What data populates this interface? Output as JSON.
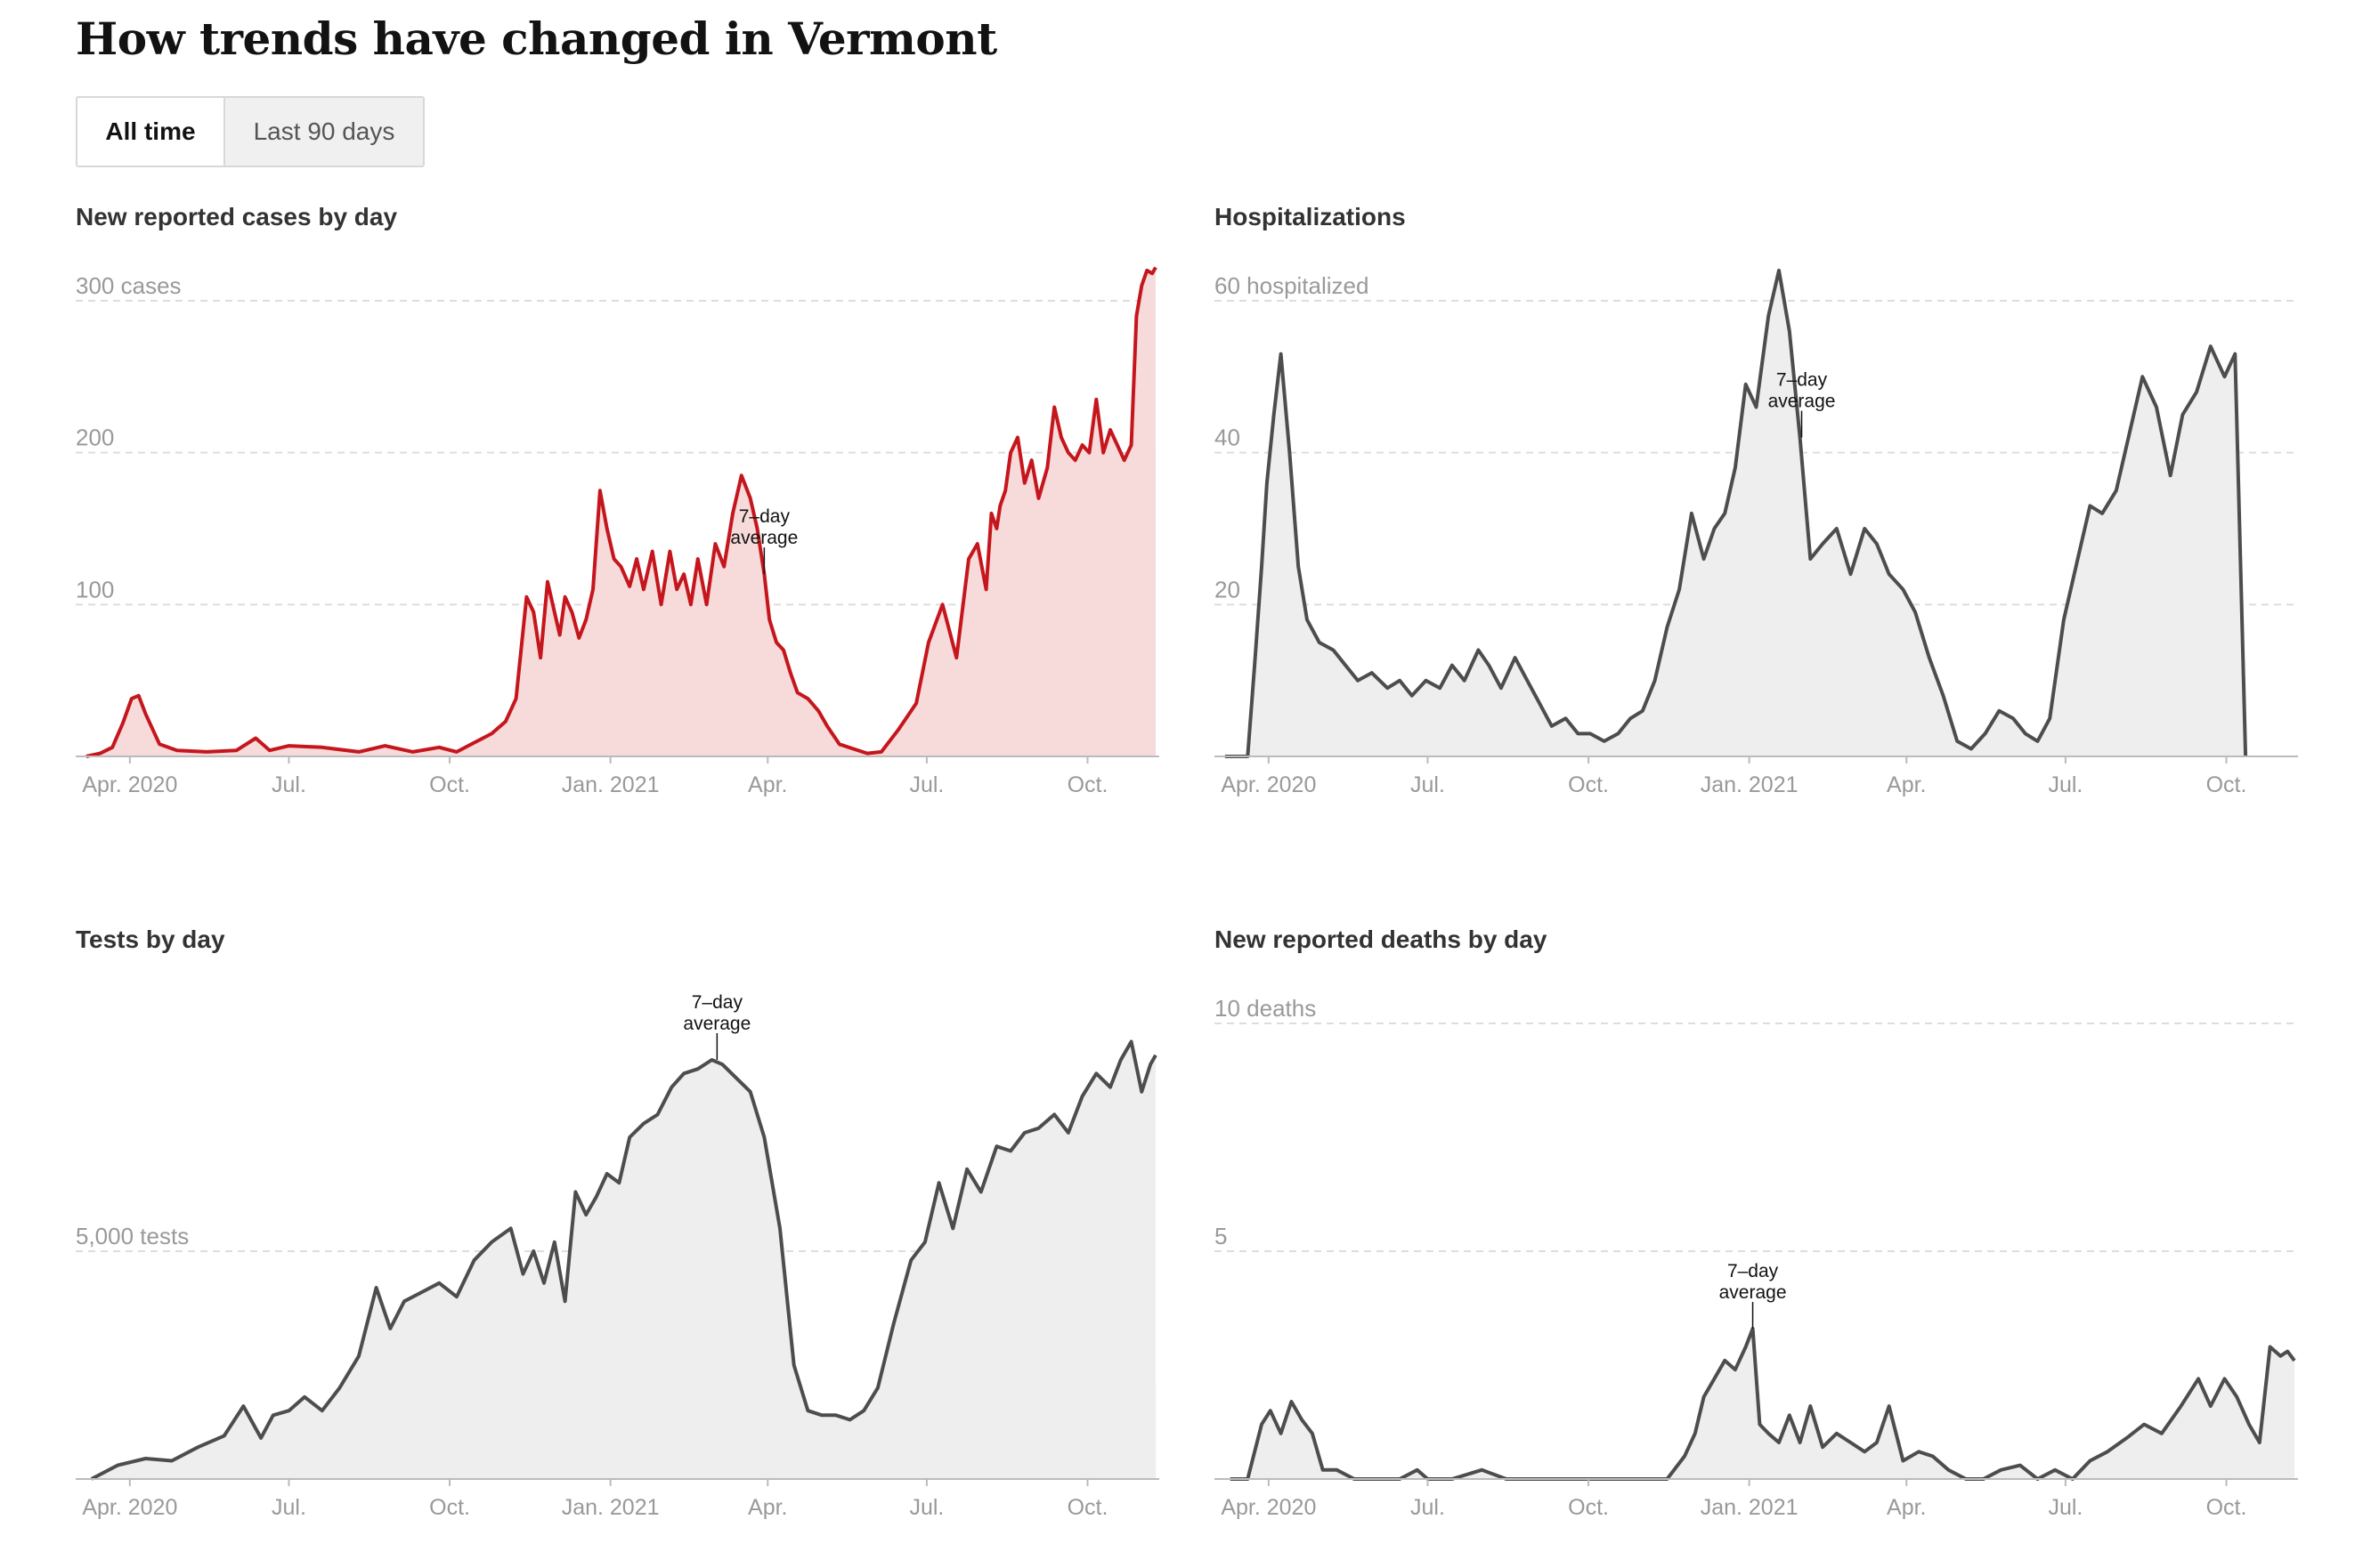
{
  "page": {
    "title": "How trends have changed in Vermont"
  },
  "toggle": {
    "options": [
      "All time",
      "Last 90 days"
    ],
    "selected": "All time"
  },
  "colors": {
    "cases_line": "#c5161d",
    "cases_fill": "#f7dada",
    "other_line": "#4d4d4d",
    "other_fill": "#eeeeee",
    "grid": "#dddddd",
    "axis_text": "#999999"
  },
  "annotation": {
    "line1": "7–day",
    "line2": "average"
  },
  "chart_data": [
    {
      "id": "cases",
      "type": "area",
      "title": "New reported cases by day",
      "x_range": [
        "2020-03-01",
        "2021-11-10"
      ],
      "ylim": [
        0,
        300
      ],
      "yticks": [
        100,
        200,
        300
      ],
      "ytick_labels": [
        "100",
        "200",
        "300 cases"
      ],
      "xticks": [
        "2020-04-01",
        "2020-07-01",
        "2020-10-01",
        "2021-01-01",
        "2021-04-01",
        "2021-07-01",
        "2021-10-01"
      ],
      "xtick_labels": [
        "Apr. 2020",
        "Jul.",
        "Oct.",
        "Jan. 2021",
        "Apr.",
        "Jul.",
        "Oct."
      ],
      "annotation_date": "2021-03-30",
      "series": [
        {
          "x": [
            "2020-03-07",
            "2020-03-15",
            "2020-03-22",
            "2020-03-28",
            "2020-04-02",
            "2020-04-06",
            "2020-04-10",
            "2020-04-18",
            "2020-04-28",
            "2020-05-15",
            "2020-06-01",
            "2020-06-12",
            "2020-06-20",
            "2020-07-01",
            "2020-07-20",
            "2020-08-10",
            "2020-08-25",
            "2020-09-10",
            "2020-09-25",
            "2020-10-05",
            "2020-10-15",
            "2020-10-25",
            "2020-11-02",
            "2020-11-08",
            "2020-11-14",
            "2020-11-18",
            "2020-11-22",
            "2020-11-26",
            "2020-11-30",
            "2020-12-03",
            "2020-12-06",
            "2020-12-10",
            "2020-12-14",
            "2020-12-18",
            "2020-12-22",
            "2020-12-26",
            "2020-12-30",
            "2021-01-03",
            "2021-01-07",
            "2021-01-12",
            "2021-01-16",
            "2021-01-20",
            "2021-01-25",
            "2021-01-30",
            "2021-02-04",
            "2021-02-08",
            "2021-02-12",
            "2021-02-16",
            "2021-02-20",
            "2021-02-25",
            "2021-03-02",
            "2021-03-07",
            "2021-03-12",
            "2021-03-17",
            "2021-03-22",
            "2021-03-26",
            "2021-03-30",
            "2021-04-02",
            "2021-04-06",
            "2021-04-10",
            "2021-04-14",
            "2021-04-18",
            "2021-04-24",
            "2021-04-30",
            "2021-05-05",
            "2021-05-12",
            "2021-05-20",
            "2021-05-28",
            "2021-06-05",
            "2021-06-15",
            "2021-06-25",
            "2021-07-02",
            "2021-07-10",
            "2021-07-18",
            "2021-07-25",
            "2021-07-30",
            "2021-08-04",
            "2021-08-07",
            "2021-08-10",
            "2021-08-12",
            "2021-08-15",
            "2021-08-18",
            "2021-08-22",
            "2021-08-26",
            "2021-08-30",
            "2021-09-03",
            "2021-09-08",
            "2021-09-12",
            "2021-09-16",
            "2021-09-20",
            "2021-09-24",
            "2021-09-28",
            "2021-10-02",
            "2021-10-06",
            "2021-10-10",
            "2021-10-14",
            "2021-10-18",
            "2021-10-22",
            "2021-10-26",
            "2021-10-29",
            "2021-11-01",
            "2021-11-04",
            "2021-11-07",
            "2021-11-09"
          ],
          "y": [
            0,
            2,
            6,
            22,
            38,
            40,
            28,
            8,
            4,
            3,
            4,
            12,
            4,
            7,
            6,
            3,
            7,
            3,
            6,
            3,
            9,
            15,
            23,
            38,
            105,
            95,
            65,
            115,
            95,
            80,
            105,
            95,
            78,
            90,
            110,
            175,
            150,
            130,
            125,
            112,
            130,
            110,
            135,
            100,
            135,
            110,
            120,
            100,
            130,
            100,
            140,
            125,
            160,
            185,
            170,
            150,
            120,
            90,
            75,
            70,
            55,
            42,
            38,
            30,
            20,
            8,
            5,
            2,
            3,
            18,
            35,
            75,
            100,
            65,
            130,
            140,
            110,
            160,
            150,
            165,
            175,
            200,
            210,
            180,
            195,
            170,
            190,
            230,
            210,
            200,
            195,
            205,
            200,
            235,
            200,
            215,
            205,
            195,
            205,
            290,
            310,
            320,
            318,
            322
          ]
        }
      ]
    },
    {
      "id": "hospitalizations",
      "type": "area",
      "title": "Hospitalizations",
      "x_range": [
        "2020-03-01",
        "2021-11-10"
      ],
      "ylim": [
        0,
        60
      ],
      "yticks": [
        20,
        40,
        60
      ],
      "ytick_labels": [
        "20",
        "40",
        "60 hospitalized"
      ],
      "xticks": [
        "2020-04-01",
        "2020-07-01",
        "2020-10-01",
        "2021-01-01",
        "2021-04-01",
        "2021-07-01",
        "2021-10-01"
      ],
      "xtick_labels": [
        "Apr. 2020",
        "Jul.",
        "Oct.",
        "Jan. 2021",
        "Apr.",
        "Jul.",
        "Oct."
      ],
      "annotation_date": "2021-01-31",
      "series": [
        {
          "x": [
            "2020-03-07",
            "2020-03-20",
            "2020-03-24",
            "2020-03-28",
            "2020-03-31",
            "2020-04-04",
            "2020-04-08",
            "2020-04-13",
            "2020-04-18",
            "2020-04-23",
            "2020-04-30",
            "2020-05-08",
            "2020-05-15",
            "2020-05-22",
            "2020-05-30",
            "2020-06-08",
            "2020-06-15",
            "2020-06-22",
            "2020-06-30",
            "2020-07-08",
            "2020-07-15",
            "2020-07-22",
            "2020-07-30",
            "2020-08-05",
            "2020-08-12",
            "2020-08-20",
            "2020-08-27",
            "2020-09-03",
            "2020-09-10",
            "2020-09-18",
            "2020-09-25",
            "2020-10-02",
            "2020-10-10",
            "2020-10-18",
            "2020-10-25",
            "2020-11-01",
            "2020-11-08",
            "2020-11-15",
            "2020-11-22",
            "2020-11-29",
            "2020-12-06",
            "2020-12-12",
            "2020-12-18",
            "2020-12-24",
            "2020-12-30",
            "2021-01-05",
            "2021-01-12",
            "2021-01-18",
            "2021-01-24",
            "2021-01-30",
            "2021-02-05",
            "2021-02-12",
            "2021-02-20",
            "2021-02-28",
            "2021-03-08",
            "2021-03-15",
            "2021-03-22",
            "2021-03-30",
            "2021-04-06",
            "2021-04-14",
            "2021-04-22",
            "2021-04-30",
            "2021-05-08",
            "2021-05-16",
            "2021-05-24",
            "2021-06-01",
            "2021-06-08",
            "2021-06-15",
            "2021-06-22",
            "2021-06-30",
            "2021-07-08",
            "2021-07-15",
            "2021-07-22",
            "2021-07-30",
            "2021-08-06",
            "2021-08-14",
            "2021-08-22",
            "2021-08-30",
            "2021-09-06",
            "2021-09-14",
            "2021-09-22",
            "2021-09-30",
            "2021-10-06",
            "2021-10-12",
            "2021-10-18",
            "2021-10-24",
            "2021-10-30",
            "2021-11-04",
            "2021-11-09"
          ],
          "y": [
            0,
            0,
            12,
            25,
            36,
            45,
            53,
            40,
            25,
            18,
            15,
            14,
            12,
            10,
            11,
            9,
            10,
            8,
            10,
            9,
            12,
            10,
            14,
            12,
            9,
            13,
            10,
            7,
            4,
            5,
            3,
            3,
            2,
            3,
            5,
            6,
            10,
            17,
            22,
            32,
            26,
            30,
            32,
            38,
            49,
            46,
            58,
            64,
            56,
            42,
            26,
            28,
            30,
            24,
            30,
            28,
            24,
            22,
            19,
            13,
            8,
            2,
            1,
            3,
            6,
            5,
            3,
            2,
            5,
            18,
            26,
            33,
            32,
            35,
            42,
            50,
            46,
            37,
            45,
            48,
            54,
            50,
            53,
            0,
            0,
            0,
            0,
            0,
            0
          ],
          "note": "trailing zeros unused"
        }
      ]
    },
    {
      "id": "tests",
      "type": "area",
      "title": "Tests by day",
      "x_range": [
        "2020-03-01",
        "2021-11-10"
      ],
      "ylim": [
        0,
        10000
      ],
      "yticks": [
        5000
      ],
      "ytick_labels": [
        "5,000 tests"
      ],
      "xticks": [
        "2020-04-01",
        "2020-07-01",
        "2020-10-01",
        "2021-01-01",
        "2021-04-01",
        "2021-07-01",
        "2021-10-01"
      ],
      "xtick_labels": [
        "Apr. 2020",
        "Jul.",
        "Oct.",
        "Jan. 2021",
        "Apr.",
        "Jul.",
        "Oct."
      ],
      "annotation_date": "2021-03-03",
      "series": [
        {
          "x": [
            "2020-03-10",
            "2020-03-25",
            "2020-04-10",
            "2020-04-25",
            "2020-05-10",
            "2020-05-25",
            "2020-06-05",
            "2020-06-15",
            "2020-06-22",
            "2020-07-01",
            "2020-07-10",
            "2020-07-20",
            "2020-07-30",
            "2020-08-10",
            "2020-08-20",
            "2020-08-28",
            "2020-09-05",
            "2020-09-15",
            "2020-09-25",
            "2020-10-05",
            "2020-10-15",
            "2020-10-25",
            "2020-11-05",
            "2020-11-12",
            "2020-11-18",
            "2020-11-24",
            "2020-11-30",
            "2020-12-06",
            "2020-12-12",
            "2020-12-18",
            "2020-12-24",
            "2020-12-30",
            "2021-01-06",
            "2021-01-12",
            "2021-01-20",
            "2021-01-28",
            "2021-02-05",
            "2021-02-12",
            "2021-02-20",
            "2021-02-28",
            "2021-03-06",
            "2021-03-14",
            "2021-03-22",
            "2021-03-30",
            "2021-04-08",
            "2021-04-16",
            "2021-04-24",
            "2021-05-02",
            "2021-05-10",
            "2021-05-18",
            "2021-05-26",
            "2021-06-03",
            "2021-06-12",
            "2021-06-22",
            "2021-06-30",
            "2021-07-08",
            "2021-07-16",
            "2021-07-24",
            "2021-08-01",
            "2021-08-10",
            "2021-08-18",
            "2021-08-26",
            "2021-09-03",
            "2021-09-12",
            "2021-09-20",
            "2021-09-28",
            "2021-10-06",
            "2021-10-14",
            "2021-10-20",
            "2021-10-26",
            "2021-11-01",
            "2021-11-06",
            "2021-11-09"
          ],
          "y": [
            0,
            300,
            450,
            400,
            700,
            950,
            1600,
            900,
            1400,
            1500,
            1800,
            1500,
            2000,
            2700,
            4200,
            3300,
            3900,
            4100,
            4300,
            4000,
            4800,
            5200,
            5500,
            4500,
            5000,
            4300,
            5200,
            3900,
            6300,
            5800,
            6200,
            6700,
            6500,
            7500,
            7800,
            8000,
            8600,
            8900,
            9000,
            9200,
            9100,
            8800,
            8500,
            7500,
            5500,
            2500,
            1500,
            1400,
            1400,
            1300,
            1500,
            2000,
            3400,
            4800,
            5200,
            6500,
            5500,
            6800,
            6300,
            7300,
            7200,
            7600,
            7700,
            8000,
            7600,
            8400,
            8900,
            8600,
            9200,
            9600,
            8500,
            9100,
            9300
          ]
        }
      ]
    },
    {
      "id": "deaths",
      "type": "area",
      "title": "New reported deaths by day",
      "x_range": [
        "2020-03-01",
        "2021-11-10"
      ],
      "ylim": [
        0,
        10
      ],
      "yticks": [
        5,
        10
      ],
      "ytick_labels": [
        "5",
        "10 deaths"
      ],
      "xticks": [
        "2020-04-01",
        "2020-07-01",
        "2020-10-01",
        "2021-01-01",
        "2021-04-01",
        "2021-07-01",
        "2021-10-01"
      ],
      "xtick_labels": [
        "Apr. 2020",
        "Jul.",
        "Oct.",
        "Jan. 2021",
        "Apr.",
        "Jul.",
        "Oct."
      ],
      "annotation_date": "2021-01-03",
      "series": [
        {
          "x": [
            "2020-03-10",
            "2020-03-20",
            "2020-03-28",
            "2020-04-02",
            "2020-04-08",
            "2020-04-14",
            "2020-04-20",
            "2020-04-26",
            "2020-05-02",
            "2020-05-10",
            "2020-05-20",
            "2020-06-01",
            "2020-06-15",
            "2020-06-25",
            "2020-07-01",
            "2020-07-15",
            "2020-08-01",
            "2020-08-15",
            "2020-09-01",
            "2020-09-20",
            "2020-10-10",
            "2020-10-30",
            "2020-11-15",
            "2020-11-25",
            "2020-12-01",
            "2020-12-06",
            "2020-12-12",
            "2020-12-18",
            "2020-12-24",
            "2020-12-30",
            "2021-01-03",
            "2021-01-07",
            "2021-01-12",
            "2021-01-18",
            "2021-01-24",
            "2021-01-30",
            "2021-02-05",
            "2021-02-12",
            "2021-02-20",
            "2021-02-28",
            "2021-03-08",
            "2021-03-15",
            "2021-03-22",
            "2021-03-30",
            "2021-04-08",
            "2021-04-16",
            "2021-04-25",
            "2021-05-05",
            "2021-05-15",
            "2021-05-25",
            "2021-06-05",
            "2021-06-15",
            "2021-06-25",
            "2021-07-05",
            "2021-07-15",
            "2021-07-25",
            "2021-08-05",
            "2021-08-15",
            "2021-08-25",
            "2021-09-05",
            "2021-09-15",
            "2021-09-22",
            "2021-09-30",
            "2021-10-07",
            "2021-10-14",
            "2021-10-20",
            "2021-10-26",
            "2021-11-01",
            "2021-11-05",
            "2021-11-09"
          ],
          "y": [
            0,
            0,
            1.2,
            1.5,
            1,
            1.7,
            1.3,
            1,
            0.2,
            0.2,
            0,
            0,
            0,
            0.2,
            0,
            0,
            0.2,
            0,
            0,
            0,
            0,
            0,
            0,
            0.5,
            1,
            1.8,
            2.2,
            2.6,
            2.4,
            2.9,
            3.3,
            1.2,
            1.0,
            0.8,
            1.4,
            0.8,
            1.6,
            0.7,
            1.0,
            0.8,
            0.6,
            0.8,
            1.6,
            0.4,
            0.6,
            0.5,
            0.2,
            0,
            0,
            0.2,
            0.3,
            0,
            0.2,
            0,
            0.4,
            0.6,
            0.9,
            1.2,
            1.0,
            1.6,
            2.2,
            1.6,
            2.2,
            1.8,
            1.2,
            0.8,
            2.9,
            2.7,
            2.8,
            2.6
          ]
        }
      ]
    }
  ]
}
